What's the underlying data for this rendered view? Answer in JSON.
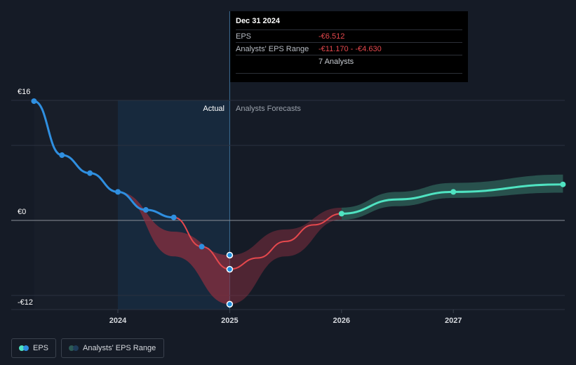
{
  "tooltip": {
    "date": "Dec 31 2024",
    "eps_label": "EPS",
    "eps_value": "-€6.512",
    "range_label": "Analysts' EPS Range",
    "range_value": "-€11.170 - -€4.630",
    "analysts": "7 Analysts"
  },
  "legend": {
    "eps": "EPS",
    "range": "Analysts' EPS Range"
  },
  "colors": {
    "background": "#151b26",
    "actual_line": "#2f8fe0",
    "forecast_negative": "#e5484d",
    "forecast_positive": "#4fe3c1",
    "range_negative": "#8a2f3f",
    "range_positive": "#2c5a55",
    "actual_band": "#1a3550"
  },
  "chart_data": {
    "type": "line",
    "title": "",
    "y_tick_labels": [
      "€16",
      "€0",
      "-€12"
    ],
    "x_tick_labels": [
      "2024",
      "2025",
      "2026",
      "2027"
    ],
    "region_labels": {
      "actual": "Actual",
      "forecast": "Analysts Forecasts"
    },
    "ylim": [
      -12,
      16
    ],
    "xlim": [
      2023.25,
      2027.98
    ],
    "grid": true,
    "legend_position": "bottom-left",
    "series": [
      {
        "name": "EPS",
        "kind": "actual",
        "points": [
          {
            "x": 2023.25,
            "y": 15.9
          },
          {
            "x": 2023.5,
            "y": 8.7
          },
          {
            "x": 2023.75,
            "y": 6.3
          },
          {
            "x": 2024.0,
            "y": 3.8
          },
          {
            "x": 2024.25,
            "y": 1.4
          },
          {
            "x": 2024.5,
            "y": 0.4
          },
          {
            "x": 2024.75,
            "y": -3.5
          },
          {
            "x": 2025.0,
            "y": -6.5
          }
        ]
      },
      {
        "name": "EPS",
        "kind": "forecast",
        "points": [
          {
            "x": 2025.0,
            "y": -6.5
          },
          {
            "x": 2025.25,
            "y": -5.0
          },
          {
            "x": 2025.5,
            "y": -2.8
          },
          {
            "x": 2025.75,
            "y": -0.6
          },
          {
            "x": 2026.0,
            "y": 0.9
          },
          {
            "x": 2026.5,
            "y": 2.8
          },
          {
            "x": 2027.0,
            "y": 3.8
          },
          {
            "x": 2027.98,
            "y": 4.8
          }
        ]
      },
      {
        "name": "Analysts' EPS Range",
        "kind": "range",
        "points": [
          {
            "x": 2024.0,
            "low": 3.8,
            "high": 3.8
          },
          {
            "x": 2024.5,
            "low": -4.8,
            "high": -1.5
          },
          {
            "x": 2025.0,
            "low": -11.17,
            "high": -4.63
          },
          {
            "x": 2025.5,
            "low": -4.8,
            "high": -1.2
          },
          {
            "x": 2026.0,
            "low": 0.1,
            "high": 1.7
          },
          {
            "x": 2026.5,
            "low": 1.9,
            "high": 3.8
          },
          {
            "x": 2027.0,
            "low": 3.0,
            "high": 5.0
          },
          {
            "x": 2027.98,
            "low": 3.7,
            "high": 6.1
          }
        ]
      }
    ],
    "highlight_points": [
      {
        "x": 2025.0,
        "y": -4.63
      },
      {
        "x": 2025.0,
        "y": -6.512
      },
      {
        "x": 2025.0,
        "y": -11.17
      }
    ]
  }
}
